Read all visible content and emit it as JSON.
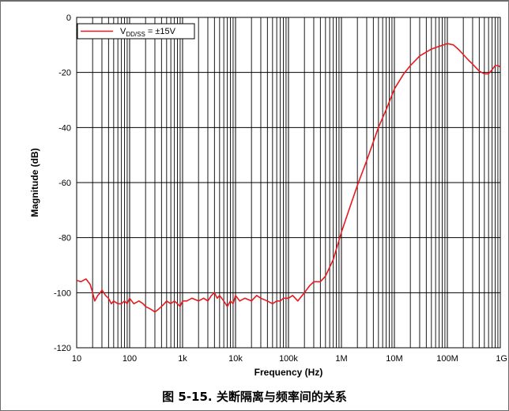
{
  "figure": {
    "caption": "图 5-15. 关断隔离与频率间的关系"
  },
  "chart_data": {
    "type": "line",
    "title": "",
    "xlabel": "Frequency (Hz)",
    "ylabel": "Magnitude (dB)",
    "x_scale": "log",
    "xlim": [
      10,
      1000000000
    ],
    "ylim": [
      -120,
      0
    ],
    "x_ticks": [
      10,
      100,
      1000,
      10000,
      100000,
      1000000,
      10000000,
      100000000,
      1000000000
    ],
    "x_tick_labels": [
      "10",
      "100",
      "1k",
      "10k",
      "100k",
      "1M",
      "10M",
      "100M",
      "1G"
    ],
    "y_ticks": [
      0,
      -20,
      -40,
      -60,
      -80,
      -100,
      -120
    ],
    "y_tick_labels": [
      "0",
      "-20",
      "-40",
      "-60",
      "-80",
      "-100",
      "-120"
    ],
    "grid": true,
    "legend_position": "top-left",
    "line_color": "#e8191f",
    "series": [
      {
        "name": "VDD/SS = ±15V",
        "legend_main": "V",
        "legend_sub": "DD/SS",
        "legend_rest": " = ±15V",
        "x": [
          10,
          12,
          15,
          18,
          20,
          22,
          25,
          28,
          30,
          35,
          40,
          45,
          50,
          60,
          70,
          80,
          90,
          100,
          120,
          150,
          180,
          200,
          250,
          300,
          350,
          400,
          450,
          500,
          600,
          700,
          800,
          900,
          1000,
          1200,
          1500,
          2000,
          2500,
          3000,
          3500,
          4000,
          4500,
          5000,
          6000,
          7000,
          8000,
          9000,
          10000,
          12000,
          15000,
          20000,
          25000,
          30000,
          40000,
          50000,
          60000,
          70000,
          80000,
          100000,
          120000,
          150000,
          200000,
          250000,
          300000,
          400000,
          500000,
          700000,
          1000000,
          1500000,
          2000000,
          3000000,
          5000000,
          7000000,
          10000000,
          15000000,
          20000000,
          30000000,
          50000000,
          70000000,
          100000000,
          130000000,
          160000000,
          200000000,
          250000000,
          300000000,
          400000000,
          500000000,
          600000000,
          700000000,
          800000000,
          900000000,
          1000000000
        ],
        "y": [
          -95.5,
          -96,
          -95,
          -97,
          -100,
          -103,
          -101,
          -100,
          -99,
          -101,
          -102,
          -104,
          -103,
          -104,
          -104,
          -103,
          -104,
          -102,
          -104,
          -103,
          -104,
          -105,
          -106,
          -107,
          -106,
          -105,
          -104,
          -103,
          -104,
          -103,
          -104,
          -105,
          -103,
          -103,
          -102,
          -103,
          -102,
          -103,
          -101,
          -100,
          -102,
          -101,
          -103,
          -105,
          -103,
          -104,
          -101,
          -103,
          -102,
          -103,
          -101,
          -102,
          -103,
          -104,
          -103,
          -103,
          -102,
          -102,
          -101,
          -103,
          -100,
          -97.5,
          -96,
          -96,
          -94,
          -88,
          -78,
          -68,
          -61,
          -52,
          -40,
          -33.5,
          -26,
          -20.5,
          -17.5,
          -14,
          -11.5,
          -10.5,
          -9.5,
          -10,
          -11.5,
          -13.5,
          -15.5,
          -17,
          -19.5,
          -20.5,
          -20.5,
          -19,
          -17.5,
          -17.5,
          -18
        ]
      }
    ]
  }
}
